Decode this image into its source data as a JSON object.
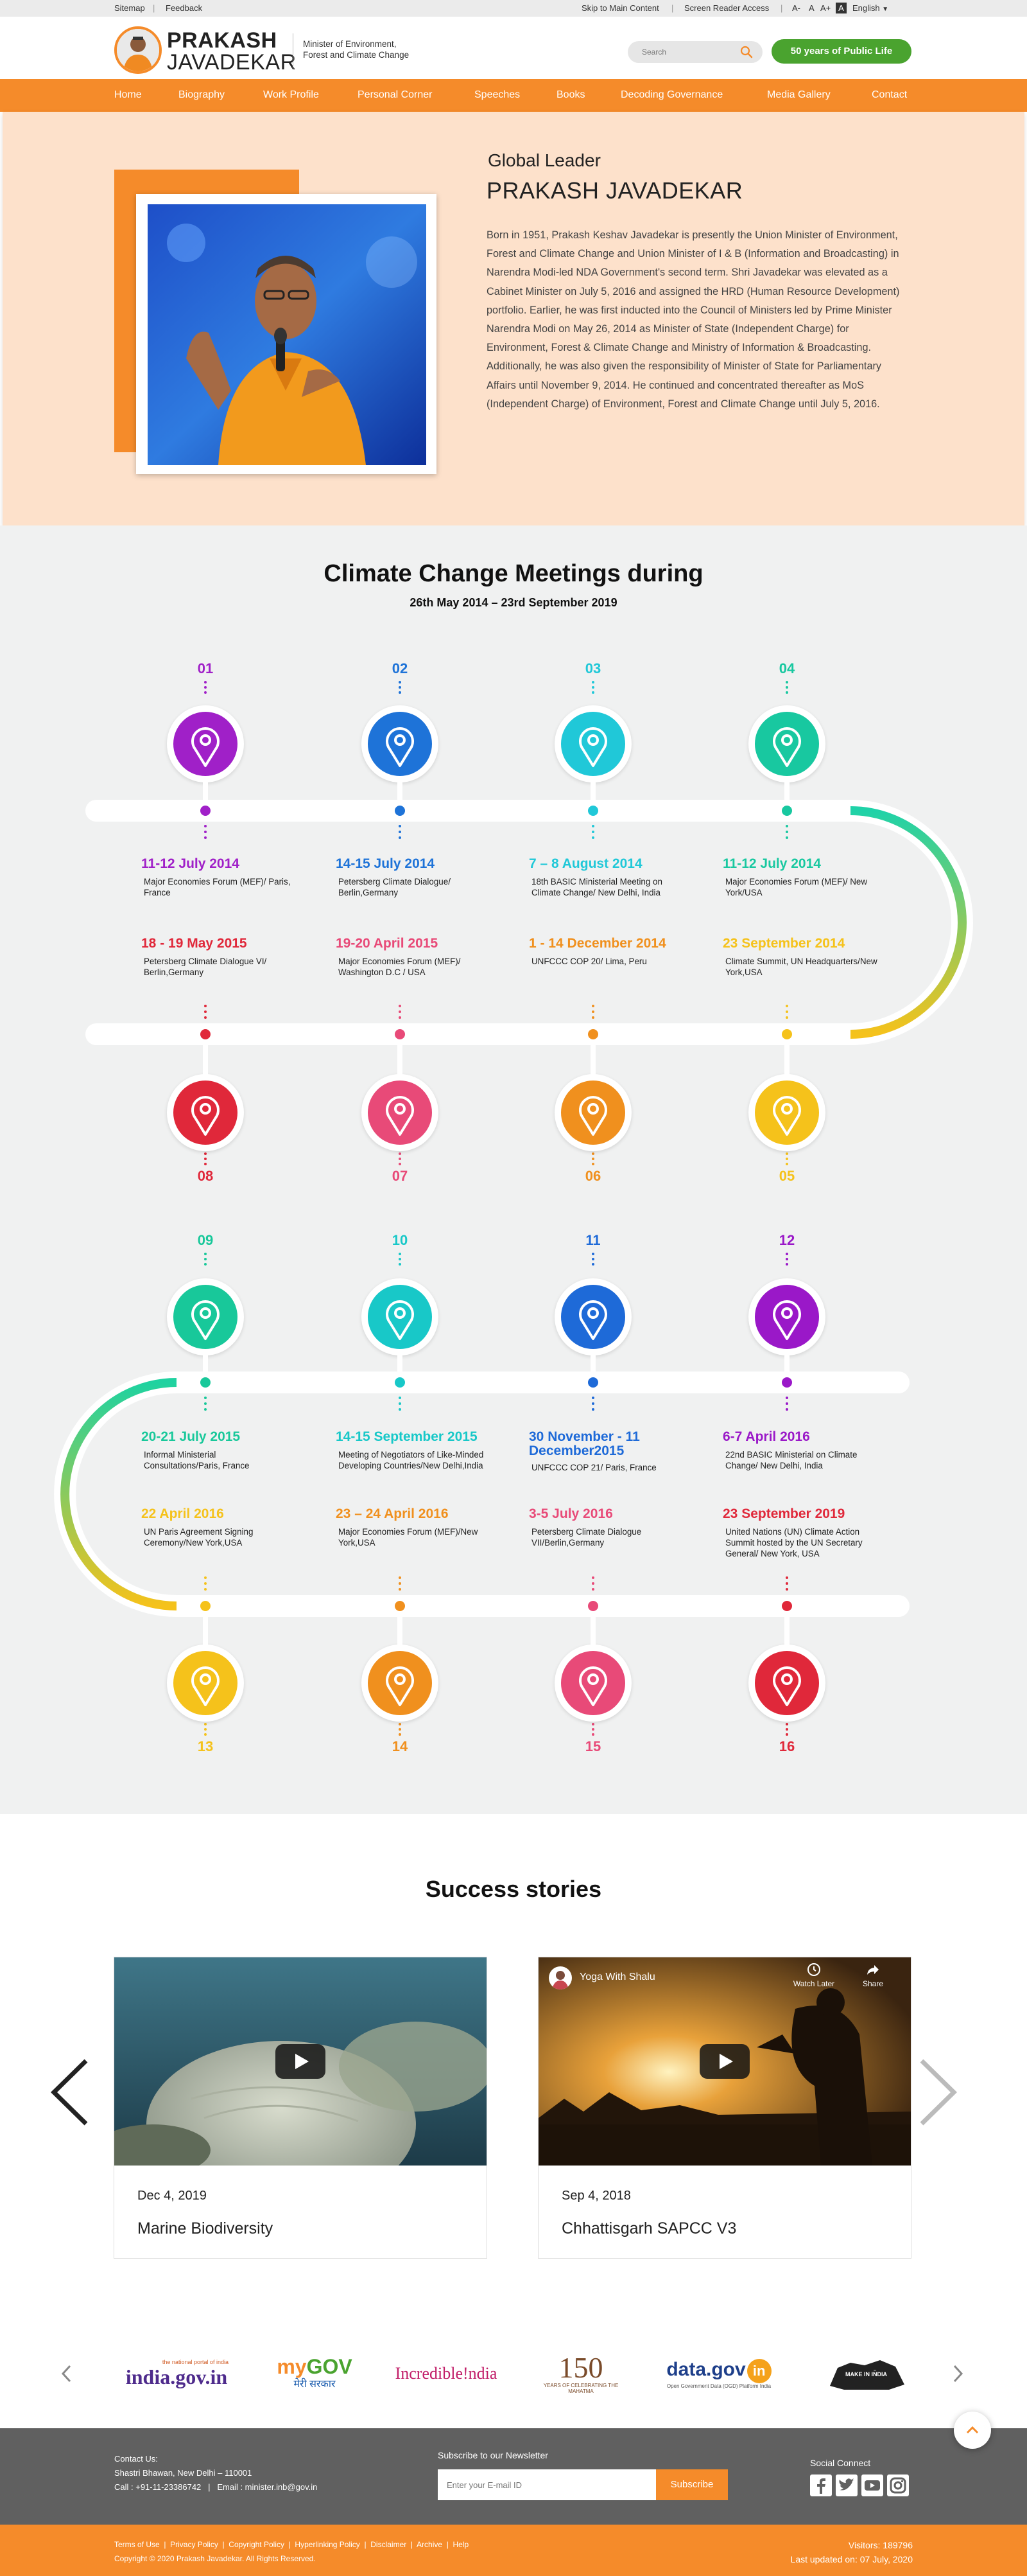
{
  "topbar": {
    "sitemap": "Sitemap",
    "sep": "|",
    "feedback": "Feedback",
    "skip": "Skip to Main Content",
    "screen_reader": "Screen Reader Access",
    "font_minus": "A-",
    "font_normal": "A",
    "font_plus": "A+",
    "contrast": "A",
    "language": "English"
  },
  "header": {
    "brand_line1": "PRAKASH",
    "brand_line2": "JAVADEKAR",
    "ministry_line1": "Minister of Environment,",
    "ministry_line2": "Forest and Climate Change",
    "search_placeholder": "Search",
    "years_button": "50 years of Public Life"
  },
  "nav": [
    "Home",
    "Biography",
    "Work Profile",
    "Personal Corner",
    "Speeches",
    "Books",
    "Decoding Governance",
    "Media Gallery",
    "Contact"
  ],
  "profile": {
    "subtitle": "Global Leader",
    "name": "PRAKASH JAVADEKAR",
    "bio": "Born in 1951, Prakash Keshav Javadekar is presently the Union Minister of Environment, Forest and Climate Change and Union Minister of I & B (Information and Broadcasting) in Narendra Modi-led NDA Government's second term. Shri Javadekar was elevated as a Cabinet Minister on July 5, 2016 and assigned the HRD (Human Resource Development) portfolio. Earlier, he was first inducted into the Council of Ministers led by Prime Minister Narendra Modi on May 26, 2014 as Minister of State (Independent Charge) for Environment, Forest & Climate Change and Ministry of Information & Broadcasting. Additionally, he was also given the responsibility of Minister of State for Parliamentary Affairs until November 9, 2014. He continued and concentrated thereafter as MoS (Independent Charge) of Environment, Forest and Climate Change until July 5, 2016."
  },
  "meetings": {
    "title": "Climate Change Meetings during",
    "subtitle": "26th  May 2014 – 23rd September 2019",
    "items": [
      {
        "num": "01",
        "date": "11-12 July 2014",
        "desc": "Major Economies Forum (MEF)/ Paris, France",
        "color": "#a020c8"
      },
      {
        "num": "02",
        "date": "14-15 July 2014",
        "desc": "Petersberg Climate Dialogue/ Berlin,Germany",
        "color": "#1e73d8"
      },
      {
        "num": "03",
        "date": "7 – 8 August 2014",
        "desc": "18th BASIC Ministerial Meeting on Climate Change/ New Delhi, India",
        "color": "#20c8d8"
      },
      {
        "num": "04",
        "date": "11-12 July 2014",
        "desc": "Major Economies Forum (MEF)/ New York/USA",
        "color": "#18c8a0"
      },
      {
        "num": "05",
        "date": "23 September 2014",
        "desc": "Climate Summit, UN Headquarters/New York,USA",
        "color": "#f5c21b"
      },
      {
        "num": "06",
        "date": "1 - 14 December 2014",
        "desc": "UNFCCC COP 20/ Lima, Peru",
        "color": "#f0901e"
      },
      {
        "num": "07",
        "date": "19-20 April 2015",
        "desc": "Major Economies Forum (MEF)/ Washington D.C / USA",
        "color": "#e84a78"
      },
      {
        "num": "08",
        "date": "18 - 19 May 2015",
        "desc": "Petersberg Climate Dialogue VI/ Berlin,Germany",
        "color": "#e0283a"
      },
      {
        "num": "09",
        "date": "20-21 July 2015",
        "desc": "Informal Ministerial Consultations/Paris, France",
        "color": "#18c89a"
      },
      {
        "num": "10",
        "date": "14-15 September 2015",
        "desc": "Meeting of Negotiators of Like-Minded Developing Countries/New Delhi,India",
        "color": "#18c8c8"
      },
      {
        "num": "11",
        "date": "30 November - 11 December2015",
        "desc": "UNFCCC COP 21/ Paris, France",
        "color": "#1e6ad8"
      },
      {
        "num": "12",
        "date": "6-7 April 2016",
        "desc": "22nd BASIC Ministerial on Climate Change/ New Delhi, India",
        "color": "#9a18c8"
      },
      {
        "num": "13",
        "date": "22 April 2016",
        "desc": "UN Paris Agreement Signing Ceremony/New York,USA",
        "color": "#f5c21b"
      },
      {
        "num": "14",
        "date": "23 – 24 April 2016",
        "desc": "Major Economies Forum (MEF)/New York,USA",
        "color": "#f0901e"
      },
      {
        "num": "15",
        "date": "3-5 July 2016",
        "desc": "Petersberg Climate Dialogue VII/Berlin,Germany",
        "color": "#e84a78"
      },
      {
        "num": "16",
        "date": "23 September 2019",
        "desc": "United Nations (UN) Climate Action Summit hosted by the UN Secretary General/ New York, USA",
        "color": "#e0283a"
      }
    ]
  },
  "success": {
    "title": "Success stories",
    "cards": [
      {
        "date": "Dec 4, 2019",
        "title": "Marine Biodiversity"
      },
      {
        "date": "Sep 4, 2018",
        "title": "Chhattisgarh SAPCC V3",
        "channel": "Yoga With Shalu",
        "watch_later": "Watch Later",
        "share": "Share"
      }
    ]
  },
  "partners": {
    "india_gov": "india.gov.in",
    "india_gov_tag": "the national portal of india",
    "mygov_a": "my",
    "mygov_b": "GOV",
    "mygov_hindi": "मेरी सरकार",
    "incredible": "Incredible!ndia",
    "gandhi_a": "150",
    "gandhi_b": "YEARS OF CELEBRATING THE MAHATMA",
    "datagov": "data.gov",
    "datagov_in": "in",
    "datagov_tag": "Open Government Data (OGD) Platform India",
    "makeinindia": "MAKE IN INDIA"
  },
  "footer": {
    "contact_title": "Contact Us:",
    "address": "Shastri Bhawan, New Delhi – 110001",
    "contact_line": "Call : +91-11-23386742   |   Email : minister.inb@gov.in",
    "newsletter_title": "Subscribe to our Newsletter",
    "email_placeholder": "Enter your E-mail ID",
    "subscribe": "Subscribe",
    "social_title": "Social Connect",
    "links": "Terms of Use  |  Privacy Policy  |  Copyright Policy  |  Hyperlinking Policy  |  Disclaimer  |  Archive  |  Help",
    "copyright": "Copyright © 2020 Prakash Javadekar. All Rights Reserved.",
    "visitors": "Visitors: 189796",
    "updated": "Last updated on: 07 July, 2020"
  },
  "colors": {
    "orange": "#f58b2a",
    "green": "#4aa32f",
    "peach": "#fde1cb",
    "footer_grey": "#606060"
  }
}
